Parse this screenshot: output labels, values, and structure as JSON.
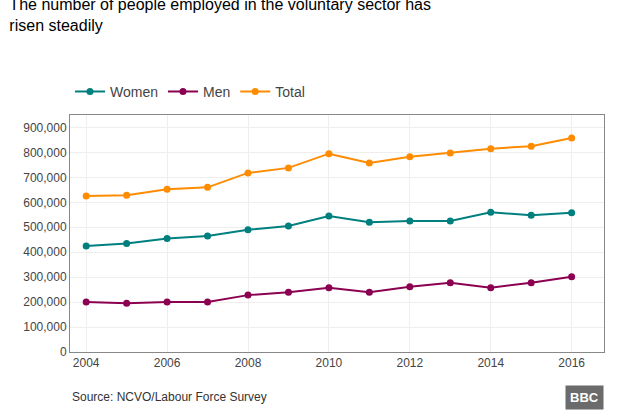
{
  "chart_data": {
    "type": "line",
    "title": "The number of people employed in the voluntary sector has\nrisen steadily",
    "annotations": [
      "Source: NCVO/Labour Force Survey",
      "BBC"
    ],
    "x": [
      2004,
      2005,
      2006,
      2007,
      2008,
      2009,
      2010,
      2011,
      2012,
      2013,
      2014,
      2015,
      2016
    ],
    "series": [
      {
        "name": "Women",
        "color": "#007f7f",
        "values": [
          425000,
          435000,
          455000,
          465000,
          490000,
          505000,
          545000,
          520000,
          525000,
          525000,
          560000,
          548000,
          558000
        ]
      },
      {
        "name": "Men",
        "color": "#8b0050",
        "values": [
          200000,
          195000,
          200000,
          200000,
          228000,
          240000,
          258000,
          240000,
          262000,
          278000,
          258000,
          278000,
          302000
        ]
      },
      {
        "name": "Total",
        "color": "#ff8c00",
        "values": [
          625000,
          628000,
          652000,
          660000,
          718000,
          738000,
          795000,
          758000,
          783000,
          798000,
          815000,
          825000,
          858000
        ]
      }
    ],
    "xlim": [
      2003.6,
      2016.8
    ],
    "xticks": [
      2004,
      2006,
      2008,
      2010,
      2012,
      2014,
      2016
    ],
    "ylim": [
      0,
      950000
    ],
    "yticks": [
      0,
      {
        "value": 100000,
        "label": "100,000"
      },
      {
        "value": 200000,
        "label": "200,000"
      },
      {
        "value": 300000,
        "label": "300,000"
      },
      {
        "value": 400000,
        "label": "400,000"
      },
      {
        "value": 500000,
        "label": "500,000"
      },
      {
        "value": 600000,
        "label": "600,000"
      },
      {
        "value": 700000,
        "label": "700,000"
      },
      {
        "value": 800000,
        "label": "800,000"
      },
      {
        "value": 900000,
        "label": "900,000"
      }
    ],
    "grid": true,
    "legend": "upper left",
    "marker": "circle",
    "line_style": "solid"
  }
}
